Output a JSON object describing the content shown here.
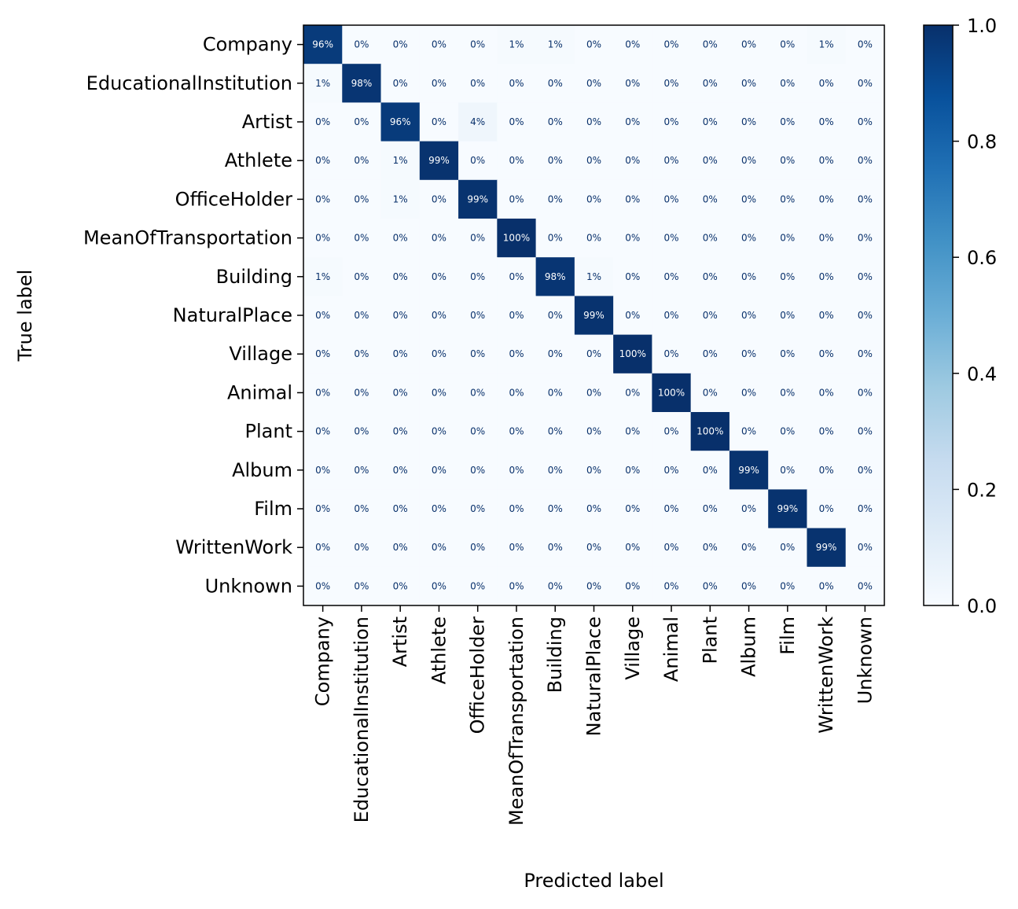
{
  "chart_data": {
    "type": "heatmap",
    "title": "",
    "xlabel": "Predicted label",
    "ylabel": "True label",
    "colormap": "Blues",
    "value_format": "percent",
    "categories": [
      "Company",
      "EducationalInstitution",
      "Artist",
      "Athlete",
      "OfficeHolder",
      "MeanOfTransportation",
      "Building",
      "NaturalPlace",
      "Village",
      "Animal",
      "Plant",
      "Album",
      "Film",
      "WrittenWork",
      "Unknown"
    ],
    "x_categories": [
      "Company",
      "EducationalInstitution",
      "Artist",
      "Athlete",
      "OfficeHolder",
      "MeanOfTransportation",
      "Building",
      "NaturalPlace",
      "Village",
      "Animal",
      "Plant",
      "Album",
      "Film",
      "WrittenWork",
      "Unknown"
    ],
    "y_categories": [
      "Company",
      "EducationalInstitution",
      "Artist",
      "Athlete",
      "OfficeHolder",
      "MeanOfTransportation",
      "Building",
      "NaturalPlace",
      "Village",
      "Animal",
      "Plant",
      "Album",
      "Film",
      "WrittenWork",
      "Unknown"
    ],
    "values": [
      [
        0.96,
        0.0,
        0.0,
        0.0,
        0.0,
        0.01,
        0.01,
        0.0,
        0.0,
        0.0,
        0.0,
        0.0,
        0.0,
        0.01,
        0.0
      ],
      [
        0.01,
        0.98,
        0.0,
        0.0,
        0.0,
        0.0,
        0.0,
        0.0,
        0.0,
        0.0,
        0.0,
        0.0,
        0.0,
        0.0,
        0.0
      ],
      [
        0.0,
        0.0,
        0.96,
        0.0,
        0.04,
        0.0,
        0.0,
        0.0,
        0.0,
        0.0,
        0.0,
        0.0,
        0.0,
        0.0,
        0.0
      ],
      [
        0.0,
        0.0,
        0.01,
        0.99,
        0.0,
        0.0,
        0.0,
        0.0,
        0.0,
        0.0,
        0.0,
        0.0,
        0.0,
        0.0,
        0.0
      ],
      [
        0.0,
        0.0,
        0.01,
        0.0,
        0.99,
        0.0,
        0.0,
        0.0,
        0.0,
        0.0,
        0.0,
        0.0,
        0.0,
        0.0,
        0.0
      ],
      [
        0.0,
        0.0,
        0.0,
        0.0,
        0.0,
        1.0,
        0.0,
        0.0,
        0.0,
        0.0,
        0.0,
        0.0,
        0.0,
        0.0,
        0.0
      ],
      [
        0.01,
        0.0,
        0.0,
        0.0,
        0.0,
        0.0,
        0.98,
        0.01,
        0.0,
        0.0,
        0.0,
        0.0,
        0.0,
        0.0,
        0.0
      ],
      [
        0.0,
        0.0,
        0.0,
        0.0,
        0.0,
        0.0,
        0.0,
        0.99,
        0.0,
        0.0,
        0.0,
        0.0,
        0.0,
        0.0,
        0.0
      ],
      [
        0.0,
        0.0,
        0.0,
        0.0,
        0.0,
        0.0,
        0.0,
        0.0,
        1.0,
        0.0,
        0.0,
        0.0,
        0.0,
        0.0,
        0.0
      ],
      [
        0.0,
        0.0,
        0.0,
        0.0,
        0.0,
        0.0,
        0.0,
        0.0,
        0.0,
        1.0,
        0.0,
        0.0,
        0.0,
        0.0,
        0.0
      ],
      [
        0.0,
        0.0,
        0.0,
        0.0,
        0.0,
        0.0,
        0.0,
        0.0,
        0.0,
        0.0,
        1.0,
        0.0,
        0.0,
        0.0,
        0.0
      ],
      [
        0.0,
        0.0,
        0.0,
        0.0,
        0.0,
        0.0,
        0.0,
        0.0,
        0.0,
        0.0,
        0.0,
        0.99,
        0.0,
        0.0,
        0.0
      ],
      [
        0.0,
        0.0,
        0.0,
        0.0,
        0.0,
        0.0,
        0.0,
        0.0,
        0.0,
        0.0,
        0.0,
        0.0,
        0.99,
        0.0,
        0.0
      ],
      [
        0.0,
        0.0,
        0.0,
        0.0,
        0.0,
        0.0,
        0.0,
        0.0,
        0.0,
        0.0,
        0.0,
        0.0,
        0.0,
        0.99,
        0.0
      ],
      [
        0.0,
        0.0,
        0.0,
        0.0,
        0.0,
        0.0,
        0.0,
        0.0,
        0.0,
        0.0,
        0.0,
        0.0,
        0.0,
        0.0,
        0.0
      ]
    ],
    "colorbar": {
      "range": [
        0.0,
        1.0
      ],
      "ticks": [
        0.0,
        0.2,
        0.4,
        0.6,
        0.8,
        1.0
      ],
      "tick_labels": [
        "0.0",
        "0.2",
        "0.4",
        "0.6",
        "0.8",
        "1.0"
      ]
    },
    "grid": false,
    "legend": "colorbar-right"
  }
}
